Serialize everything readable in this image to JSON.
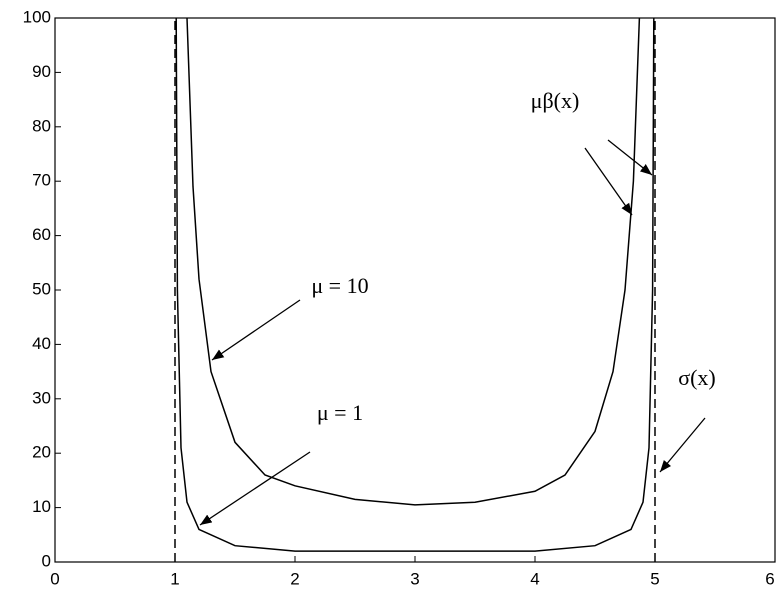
{
  "chart_data": {
    "type": "line",
    "xlim": [
      0,
      6
    ],
    "xticks": [
      0,
      1,
      2,
      3,
      4,
      5,
      6
    ],
    "ylim": [
      0,
      100
    ],
    "yticks": [
      0,
      10,
      20,
      30,
      40,
      50,
      60,
      70,
      80,
      90,
      100
    ],
    "series": [
      {
        "color": "#000000",
        "dash": false,
        "x": [
          1.1,
          1.15,
          1.2,
          1.3,
          1.5,
          1.75,
          2,
          2.5,
          3,
          3.5,
          4,
          4.25,
          4.5,
          4.65,
          4.75,
          4.82,
          4.87
        ],
        "values": [
          100,
          69,
          52,
          35,
          22,
          16,
          14,
          11.5,
          10.5,
          11,
          13,
          16,
          24,
          35,
          50,
          70,
          100
        ]
      },
      {
        "color": "#000000",
        "dash": false,
        "x": [
          1.01,
          1.02,
          1.05,
          1.1,
          1.2,
          1.5,
          2,
          3,
          4,
          4.5,
          4.8,
          4.9,
          4.95,
          4.98,
          4.99
        ],
        "values": [
          100,
          50,
          21,
          11,
          6,
          3,
          2,
          2,
          2,
          3,
          6,
          11,
          21,
          50,
          100
        ]
      },
      {
        "color": "#000000",
        "dash": true,
        "x": [
          1,
          1
        ],
        "values": [
          0,
          100
        ]
      },
      {
        "color": "#000000",
        "dash": true,
        "x": [
          5,
          5
        ],
        "values": [
          0,
          100
        ]
      }
    ],
    "annotations": [
      "μβ(x)",
      "μ = 10",
      "μ = 1",
      "σ(x)"
    ]
  }
}
